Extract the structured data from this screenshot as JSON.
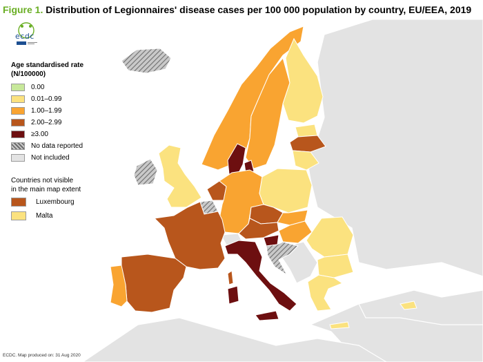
{
  "title": {
    "figure": "Figure 1.",
    "text": "Distribution of Legionnaires' disease cases per 100 000 population by country, EU/EEA, 2019"
  },
  "logo": {
    "text": "ecdc",
    "icon": "ecdc-logo-icon"
  },
  "legend": {
    "title_line1": "Age standardised rate",
    "title_line2": "(N/100000)",
    "items": [
      {
        "label": "0.00",
        "color": "#c7e89a"
      },
      {
        "label": "0.01–0.99",
        "color": "#fbe27f"
      },
      {
        "label": "1.00–1.99",
        "color": "#f9a431"
      },
      {
        "label": "2.00–2.99",
        "color": "#b8561c"
      },
      {
        "label": "≥3.00",
        "color": "#6d0f10"
      },
      {
        "label": "No data reported",
        "color": "hatched-grey"
      },
      {
        "label": "Not included",
        "color": "#e3e3e3"
      }
    ],
    "small_countries_title_line1": "Countries not visible",
    "small_countries_title_line2": "in the main map extent",
    "small_countries": [
      {
        "label": "Luxembourg",
        "color": "#b8561c"
      },
      {
        "label": "Malta",
        "color": "#fbe27f"
      }
    ]
  },
  "footer": "ECDC. Map produced on: 31 Aug 2020",
  "map_data": {
    "background_color": "#e3e3e3",
    "sea_color": "#ffffff",
    "countries": [
      {
        "name": "Iceland",
        "class": "No data reported"
      },
      {
        "name": "Ireland",
        "class": "No data reported"
      },
      {
        "name": "United Kingdom",
        "class": "0.01–0.99"
      },
      {
        "name": "Norway",
        "class": "1.00–1.99"
      },
      {
        "name": "Sweden",
        "class": "1.00–1.99"
      },
      {
        "name": "Finland",
        "class": "0.01–0.99"
      },
      {
        "name": "Estonia",
        "class": "0.01–0.99"
      },
      {
        "name": "Latvia",
        "class": "2.00–2.99"
      },
      {
        "name": "Lithuania",
        "class": "0.01–0.99"
      },
      {
        "name": "Denmark",
        "class": "≥3.00"
      },
      {
        "name": "Netherlands",
        "class": "2.00–2.99"
      },
      {
        "name": "Belgium",
        "class": "No data reported"
      },
      {
        "name": "Germany",
        "class": "1.00–1.99"
      },
      {
        "name": "Poland",
        "class": "0.01–0.99"
      },
      {
        "name": "Czechia",
        "class": "2.00–2.99"
      },
      {
        "name": "Slovakia",
        "class": "1.00–1.99"
      },
      {
        "name": "Austria",
        "class": "2.00–2.99"
      },
      {
        "name": "Hungary",
        "class": "1.00–1.99"
      },
      {
        "name": "Slovenia",
        "class": "≥3.00"
      },
      {
        "name": "Croatia",
        "class": "No data reported"
      },
      {
        "name": "Romania",
        "class": "0.01–0.99"
      },
      {
        "name": "Bulgaria",
        "class": "0.01–0.99"
      },
      {
        "name": "Greece",
        "class": "0.01–0.99"
      },
      {
        "name": "Cyprus",
        "class": "0.01–0.99"
      },
      {
        "name": "France",
        "class": "2.00–2.99"
      },
      {
        "name": "Spain",
        "class": "2.00–2.99"
      },
      {
        "name": "Portugal",
        "class": "1.00–1.99"
      },
      {
        "name": "Italy",
        "class": "≥3.00"
      },
      {
        "name": "Switzerland",
        "class": "Not included"
      },
      {
        "name": "Luxembourg",
        "class": "2.00–2.99"
      },
      {
        "name": "Malta",
        "class": "0.01–0.99"
      }
    ]
  }
}
